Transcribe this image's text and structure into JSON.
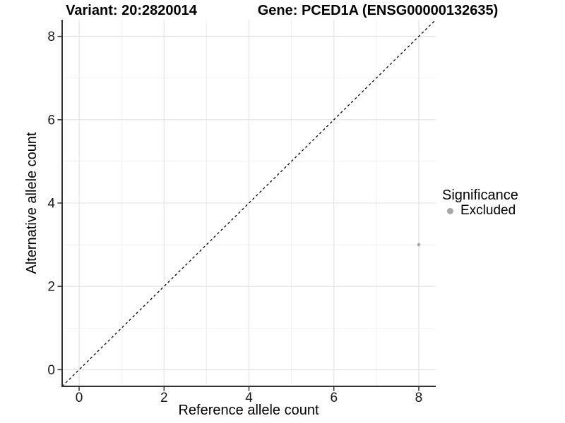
{
  "chart_data": {
    "type": "scatter",
    "title_left": "Variant: 20:2820014",
    "title_right": "Gene: PCED1A (ENSG00000132635)",
    "xlabel": "Reference allele count",
    "ylabel": "Alternative allele count",
    "xlim": [
      -0.4,
      8.4
    ],
    "ylim": [
      -0.4,
      8.4
    ],
    "x_major_ticks": [
      0,
      2,
      4,
      6,
      8
    ],
    "y_major_ticks": [
      0,
      2,
      4,
      6,
      8
    ],
    "x_minor_ticks": [
      1,
      3,
      5,
      7
    ],
    "y_minor_ticks": [
      1,
      3,
      5,
      7
    ],
    "grid": "major+minor",
    "reference_line": {
      "type": "identity",
      "style": "dashed",
      "from": [
        -0.4,
        -0.4
      ],
      "to": [
        8.4,
        8.4
      ],
      "color": "#000000"
    },
    "series": [
      {
        "name": "Excluded",
        "color": "#a8a8a8",
        "points": [
          [
            8,
            3
          ]
        ]
      }
    ],
    "legend": {
      "title": "Significance",
      "position": "right",
      "entries": [
        {
          "label": "Excluded",
          "color": "#a8a8a8"
        }
      ]
    },
    "colors": {
      "background": "#ffffff",
      "grid_major": "#e3e3e3",
      "grid_minor": "#f0f0f0",
      "axis_line": "#333333",
      "tick": "#333333",
      "text": "#1a1a1a"
    }
  }
}
